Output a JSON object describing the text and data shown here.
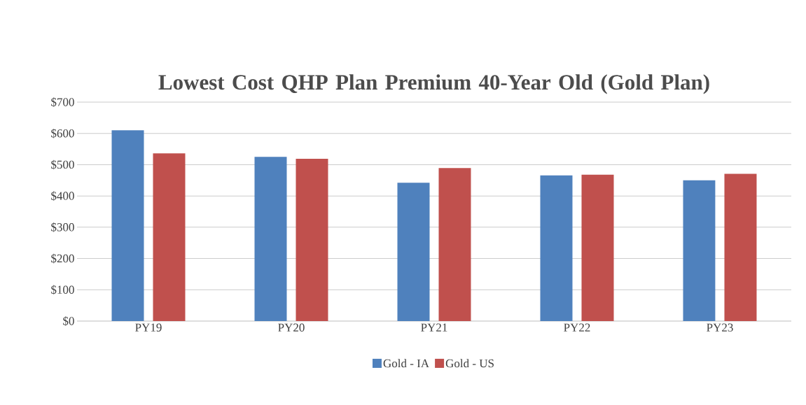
{
  "chart_data": {
    "type": "bar",
    "title": "Lowest Cost QHP Plan Premium 40-Year Old (Gold Plan)",
    "categories": [
      "PY19",
      "PY20",
      "PY21",
      "PY22",
      "PY23"
    ],
    "series": [
      {
        "name": "Gold - IA",
        "color": "#4f81bd",
        "values": [
          610,
          525,
          442,
          466,
          450
        ]
      },
      {
        "name": "Gold - US",
        "color": "#c0504d",
        "values": [
          536,
          519,
          489,
          468,
          471
        ]
      }
    ],
    "ylim": [
      0,
      700
    ],
    "yticks": [
      {
        "value": 0,
        "label": "$0"
      },
      {
        "value": 100,
        "label": "$100"
      },
      {
        "value": 200,
        "label": "$200"
      },
      {
        "value": 300,
        "label": "$300"
      },
      {
        "value": 400,
        "label": "$400"
      },
      {
        "value": 500,
        "label": "$500"
      },
      {
        "value": 600,
        "label": "$600"
      },
      {
        "value": 700,
        "label": "$700"
      }
    ],
    "grid": "y",
    "legend": "bottom"
  }
}
